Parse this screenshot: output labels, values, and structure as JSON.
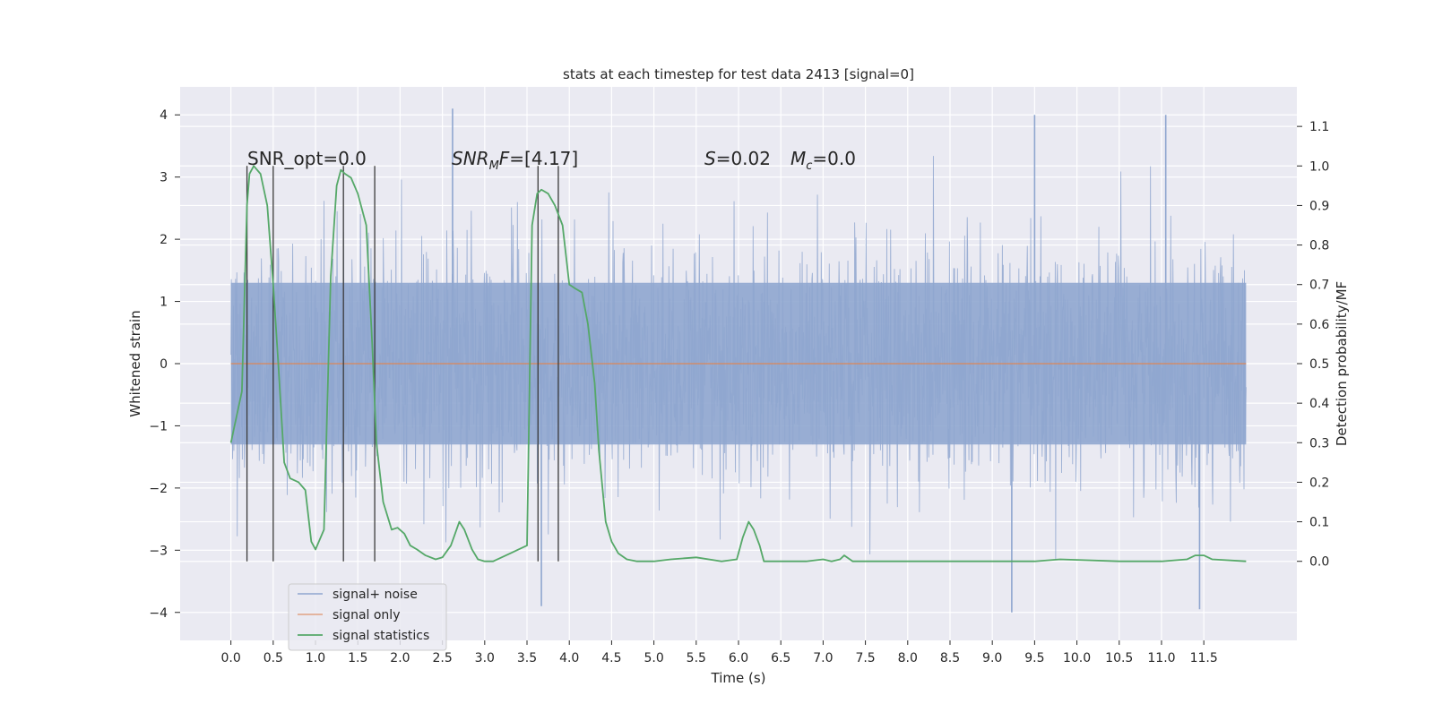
{
  "chart_data": {
    "type": "line",
    "title": "stats at each timestep for test data 2413 [signal=0]",
    "xlabel": "Time (s)",
    "ylabel": "Whitened strain",
    "ylabel_right": "Detection probability/MF",
    "xlim": [
      -0.6,
      12.6
    ],
    "ylim": [
      -4.45,
      4.45
    ],
    "ylim_right": [
      -0.2,
      1.2
    ],
    "x_ticks": [
      "0.0",
      "0.5",
      "1.0",
      "1.5",
      "2.0",
      "2.5",
      "3.0",
      "3.5",
      "4.0",
      "4.5",
      "5.0",
      "5.5",
      "6.0",
      "6.5",
      "7.0",
      "7.5",
      "8.0",
      "8.5",
      "9.0",
      "9.5",
      "10.0",
      "10.5",
      "11.0",
      "11.5"
    ],
    "y_ticks": [
      "4",
      "3",
      "2",
      "1",
      "0",
      "−1",
      "−2",
      "−3",
      "−4"
    ],
    "y_ticks_right": [
      "1.1",
      "1.0",
      "0.9",
      "0.8",
      "0.7",
      "0.6",
      "0.5",
      "0.4",
      "0.3",
      "0.2",
      "0.1",
      "0.0"
    ],
    "grid": true,
    "legend_placement": "lower-left",
    "annotations": {
      "snr_opt": "SNR_opt=0.0",
      "snr_mf_label": "SNR",
      "snr_mf_sub": "M",
      "snr_mf_label2": "F",
      "snr_mf_value": "=[4.17]",
      "s_label": "S",
      "s_value": "=0.02",
      "mc_label": "M",
      "mc_sub": "c",
      "mc_value": "=0.0"
    },
    "series": [
      {
        "name": "signal+ noise",
        "color": "#8fa6cf",
        "axis": "left",
        "x_range": [
          0.0,
          12.0
        ],
        "typical_band": [
          -1.3,
          1.3
        ],
        "notable_peaks": [
          {
            "x": 2.62,
            "y": 4.1
          },
          {
            "x": 9.5,
            "y": 4.0
          },
          {
            "x": 11.05,
            "y": 4.0
          },
          {
            "x": 3.67,
            "y": -3.9
          },
          {
            "x": 9.23,
            "y": -4.0
          },
          {
            "x": 11.45,
            "y": -3.95
          }
        ]
      },
      {
        "name": "signal only",
        "color": "#dd8452",
        "axis": "left",
        "x": [
          0.0,
          12.0
        ],
        "y": [
          0.0,
          0.0
        ]
      },
      {
        "name": "signal statistics",
        "color": "#55a868",
        "axis": "right",
        "x": [
          0.0,
          0.1,
          0.13,
          0.19,
          0.22,
          0.27,
          0.35,
          0.43,
          0.5,
          0.56,
          0.63,
          0.7,
          0.8,
          0.88,
          0.95,
          1.0,
          1.1,
          1.18,
          1.25,
          1.3,
          1.35,
          1.42,
          1.5,
          1.6,
          1.67,
          1.72,
          1.8,
          1.9,
          1.97,
          2.05,
          2.12,
          2.2,
          2.3,
          2.42,
          2.5,
          2.6,
          2.7,
          2.76,
          2.85,
          2.92,
          3.0,
          3.1,
          3.2,
          3.3,
          3.4,
          3.5,
          3.56,
          3.62,
          3.67,
          3.75,
          3.83,
          3.92,
          4.0,
          4.07,
          4.15,
          4.22,
          4.3,
          4.35,
          4.43,
          4.5,
          4.58,
          4.68,
          4.8,
          5.0,
          5.2,
          5.5,
          5.8,
          5.98,
          6.05,
          6.12,
          6.18,
          6.25,
          6.3,
          6.5,
          6.8,
          7.0,
          7.1,
          7.2,
          7.25,
          7.35,
          7.5,
          8.0,
          9.0,
          9.5,
          9.8,
          10.5,
          11.0,
          11.3,
          11.4,
          11.5,
          11.6,
          12.0
        ],
        "y": [
          0.3,
          0.4,
          0.43,
          0.9,
          0.98,
          1.0,
          0.98,
          0.9,
          0.7,
          0.5,
          0.25,
          0.21,
          0.2,
          0.18,
          0.05,
          0.03,
          0.08,
          0.72,
          0.95,
          0.99,
          0.98,
          0.97,
          0.93,
          0.85,
          0.55,
          0.3,
          0.15,
          0.08,
          0.085,
          0.07,
          0.04,
          0.03,
          0.015,
          0.005,
          0.01,
          0.04,
          0.1,
          0.08,
          0.03,
          0.005,
          0.0,
          0.0,
          0.01,
          0.02,
          0.03,
          0.04,
          0.85,
          0.93,
          0.94,
          0.93,
          0.9,
          0.85,
          0.7,
          0.69,
          0.68,
          0.6,
          0.45,
          0.28,
          0.1,
          0.05,
          0.02,
          0.005,
          0.0,
          0.0,
          0.005,
          0.01,
          0.0,
          0.005,
          0.06,
          0.1,
          0.08,
          0.04,
          0.0,
          0.0,
          0.0,
          0.005,
          0.0,
          0.005,
          0.015,
          0.0,
          0.0,
          0.0,
          0.0,
          0.0,
          0.005,
          0.0,
          0.0,
          0.005,
          0.015,
          0.015,
          0.005,
          0.0
        ]
      }
    ],
    "vertical_markers_x": [
      0.19,
      0.5,
      1.33,
      1.7,
      3.63,
      3.87
    ]
  }
}
